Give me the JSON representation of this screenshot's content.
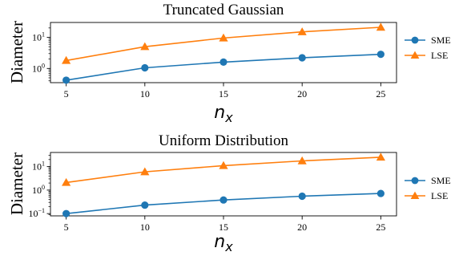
{
  "chart_data": [
    {
      "type": "line",
      "title": "Truncated Gaussian",
      "xlabel": "n_x",
      "ylabel": "Diameter",
      "x": [
        5,
        10,
        15,
        20,
        25
      ],
      "xticks": [
        "5",
        "10",
        "15",
        "20",
        "25"
      ],
      "yscale": "log",
      "ylim": [
        0.35,
        30
      ],
      "yticks": [
        {
          "value": 1,
          "base": "10",
          "exp": "0"
        },
        {
          "value": 10,
          "base": "10",
          "exp": "1"
        }
      ],
      "legend": "right",
      "grid": false,
      "series": [
        {
          "name": "SME",
          "color": "#1f77b4",
          "marker": "circle",
          "values": [
            0.42,
            1.05,
            1.6,
            2.2,
            2.85
          ]
        },
        {
          "name": "LSE",
          "color": "#ff7f0e",
          "marker": "triangle",
          "values": [
            1.8,
            5.0,
            9.5,
            15.0,
            21.0
          ]
        }
      ]
    },
    {
      "type": "line",
      "title": "Uniform Distribution",
      "xlabel": "n_x",
      "ylabel": "Diameter",
      "x": [
        5,
        10,
        15,
        20,
        25
      ],
      "xticks": [
        "5",
        "10",
        "15",
        "20",
        "25"
      ],
      "yscale": "log",
      "ylim": [
        0.08,
        40
      ],
      "yticks": [
        {
          "value": 0.1,
          "base": "10",
          "exp": "−1"
        },
        {
          "value": 1,
          "base": "10",
          "exp": "0"
        },
        {
          "value": 10,
          "base": "10",
          "exp": "1"
        }
      ],
      "legend": "right",
      "grid": false,
      "series": [
        {
          "name": "SME",
          "color": "#1f77b4",
          "marker": "circle",
          "values": [
            0.1,
            0.23,
            0.38,
            0.55,
            0.72
          ]
        },
        {
          "name": "LSE",
          "color": "#ff7f0e",
          "marker": "triangle",
          "values": [
            2.1,
            6.0,
            11.0,
            17.5,
            25.0
          ]
        }
      ]
    }
  ]
}
